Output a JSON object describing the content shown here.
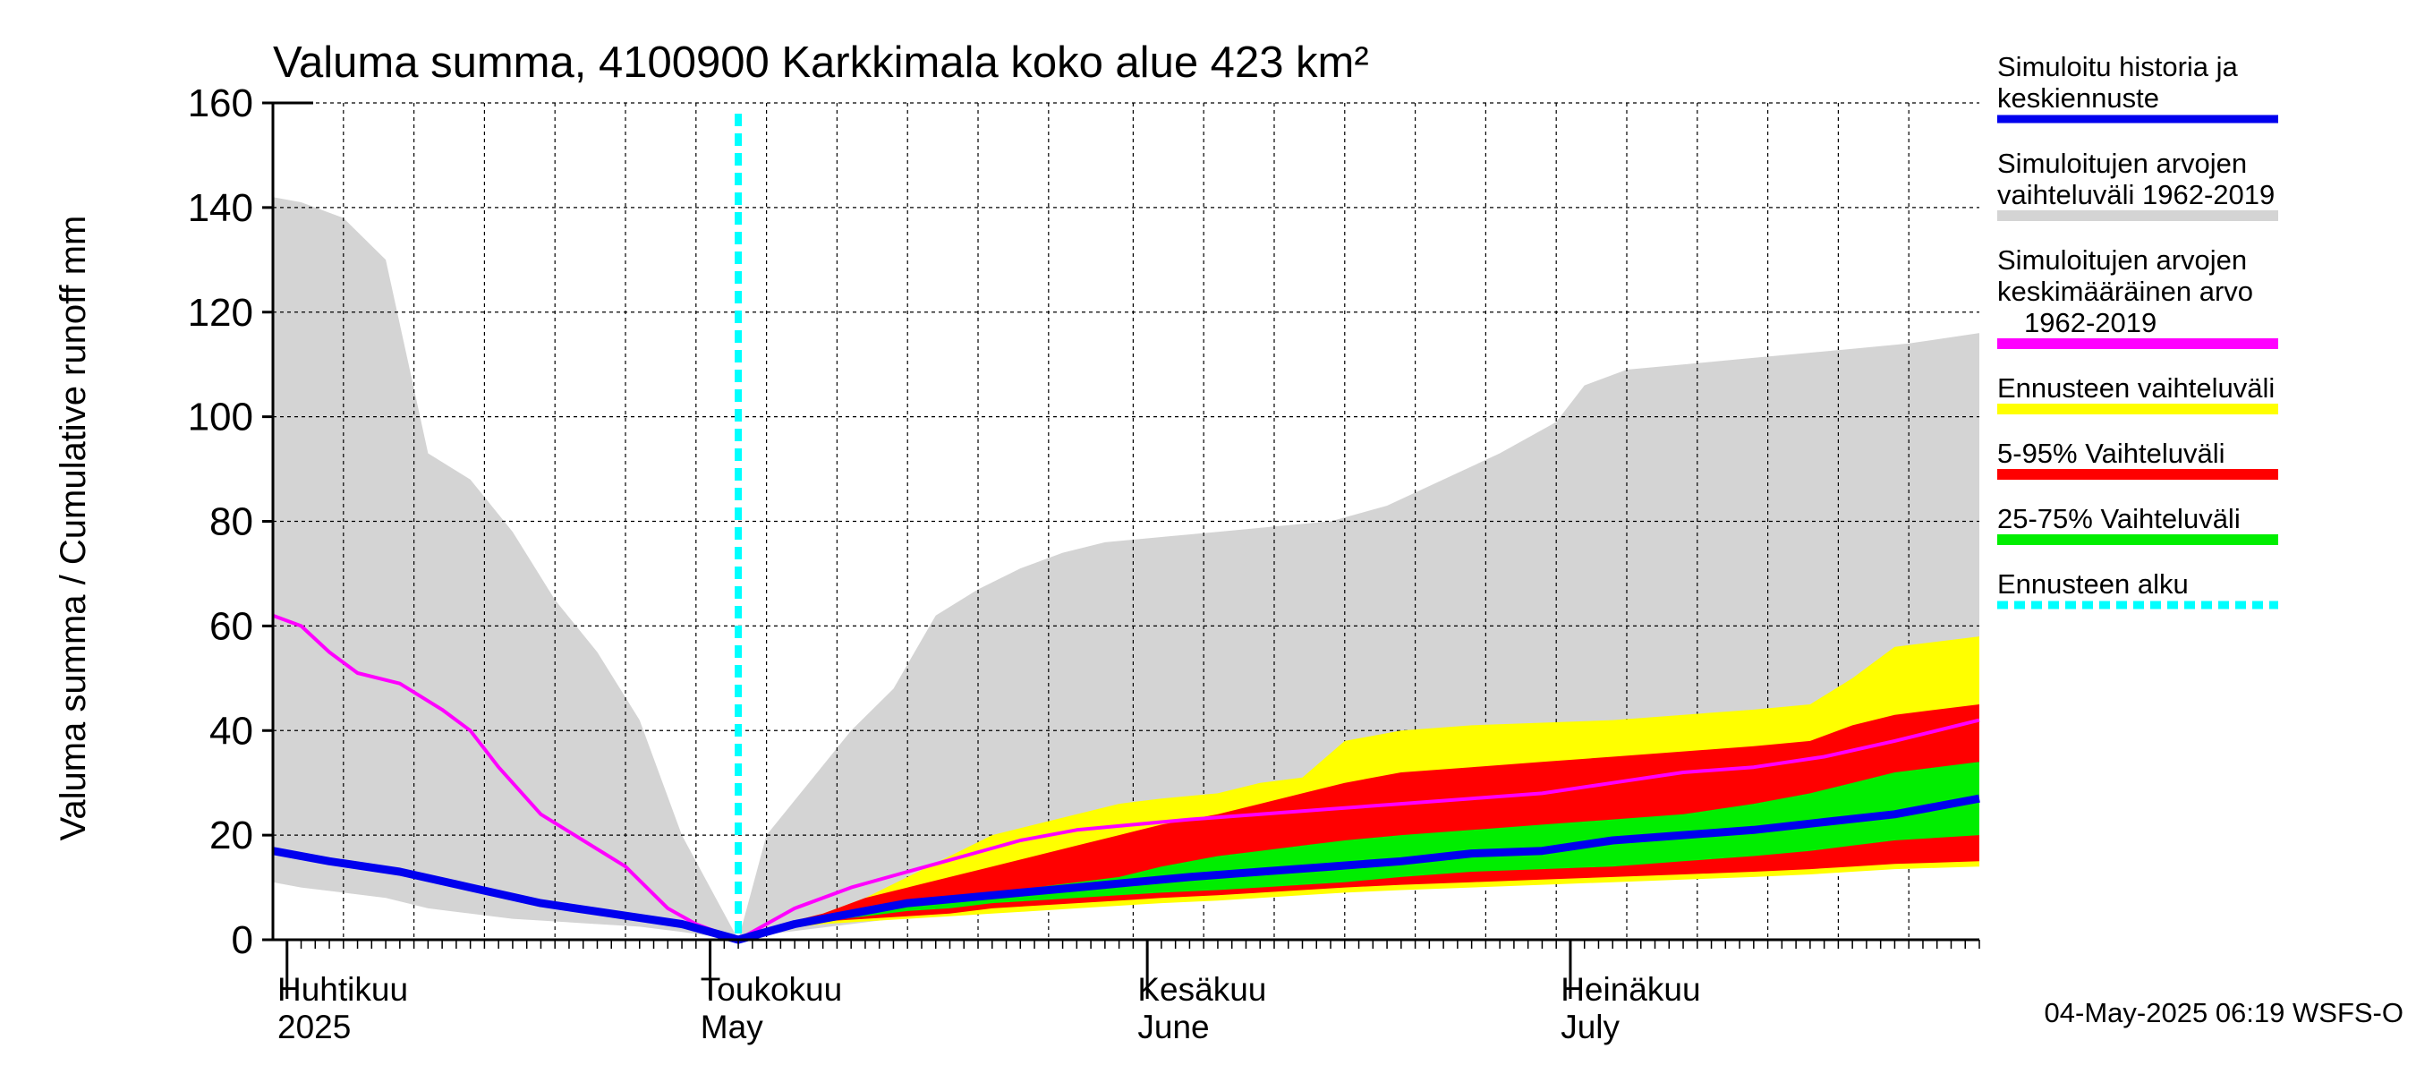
{
  "chart_data": {
    "type": "area",
    "title": "Valuma summa, 4100900 Karkkimala koko alue 423 km²",
    "ylabel": "Valuma summa / Cumulative runoff    mm",
    "ylim": [
      0,
      160
    ],
    "yticks": [
      0,
      20,
      40,
      60,
      80,
      100,
      120,
      140,
      160
    ],
    "x_unit": "day of year 2025",
    "xlim": [
      "2025-04-01",
      "2025-07-31"
    ],
    "grid": true,
    "legend_position": "right",
    "month_labels": [
      {
        "fi": "Huhtikuu",
        "en": "2025",
        "date": "2025-04-01"
      },
      {
        "fi": "Toukokuu",
        "en": "May",
        "date": "2025-05-01"
      },
      {
        "fi": "Kesäkuu",
        "en": "June",
        "date": "2025-06-01"
      },
      {
        "fi": "Heinäkuu",
        "en": "July",
        "date": "2025-07-01"
      }
    ],
    "forecast_start": "2025-05-04",
    "history_range": {
      "name": "Simuloitujen arvojen vaihteluväli 1962-2019",
      "color": "#d4d4d4",
      "x": [
        "2025-04-01",
        "2025-04-03",
        "2025-04-06",
        "2025-04-09",
        "2025-04-12",
        "2025-04-15",
        "2025-04-18",
        "2025-04-21",
        "2025-04-24",
        "2025-04-27",
        "2025-04-30",
        "2025-05-04",
        "2025-05-06",
        "2025-05-09",
        "2025-05-12",
        "2025-05-15",
        "2025-05-18",
        "2025-05-21",
        "2025-05-24",
        "2025-05-27",
        "2025-05-30",
        "2025-06-03",
        "2025-06-07",
        "2025-06-11",
        "2025-06-15",
        "2025-06-19",
        "2025-06-23",
        "2025-06-27",
        "2025-07-01",
        "2025-07-03",
        "2025-07-06",
        "2025-07-10",
        "2025-07-14",
        "2025-07-18",
        "2025-07-22",
        "2025-07-26",
        "2025-07-31"
      ],
      "upper": [
        142,
        141,
        138,
        130,
        93,
        88,
        78,
        65,
        55,
        42,
        20,
        0,
        20,
        30,
        40,
        48,
        62,
        67,
        71,
        74,
        76,
        77,
        78,
        79,
        80,
        83,
        88,
        93,
        99,
        106,
        109,
        110,
        111,
        112,
        113,
        114,
        116
      ],
      "lower": [
        11,
        10,
        9,
        8,
        6,
        5,
        4,
        3.5,
        3,
        2.5,
        1.5,
        0,
        1,
        2,
        3,
        4,
        5,
        5.5,
        6,
        6.5,
        7,
        7.5,
        8,
        8.5,
        9,
        9.5,
        10,
        10.5,
        11,
        11.5,
        12,
        12.5,
        13,
        13.5,
        14,
        14.5,
        15
      ]
    },
    "forecast_range": {
      "name": "Ennusteen vaihteluväli",
      "color": "#ffff00",
      "x": [
        "2025-05-04",
        "2025-05-07",
        "2025-05-10",
        "2025-05-13",
        "2025-05-16",
        "2025-05-19",
        "2025-05-22",
        "2025-05-25",
        "2025-05-28",
        "2025-05-31",
        "2025-06-03",
        "2025-06-07",
        "2025-06-10",
        "2025-06-13",
        "2025-06-16",
        "2025-06-20",
        "2025-06-25",
        "2025-06-30",
        "2025-07-05",
        "2025-07-10",
        "2025-07-15",
        "2025-07-19",
        "2025-07-22",
        "2025-07-25",
        "2025-07-31"
      ],
      "upper": [
        0,
        3,
        5,
        8,
        12,
        16,
        20,
        22,
        24,
        26,
        27,
        28,
        30,
        31,
        38,
        40,
        41,
        41.5,
        42,
        43,
        44,
        45,
        50,
        56,
        58
      ],
      "lower": [
        0,
        2,
        3,
        3.5,
        4,
        4.5,
        5,
        5.5,
        6,
        6.5,
        7,
        7.5,
        8,
        8.5,
        9,
        9.5,
        10,
        10.5,
        11,
        11.5,
        12,
        12.5,
        13,
        13.5,
        14
      ]
    },
    "range_5_95": {
      "name": "5-95% Vaihteluväli",
      "color": "#ff0000",
      "x": [
        "2025-05-04",
        "2025-05-07",
        "2025-05-10",
        "2025-05-13",
        "2025-05-16",
        "2025-05-19",
        "2025-05-22",
        "2025-05-25",
        "2025-05-28",
        "2025-05-31",
        "2025-06-03",
        "2025-06-07",
        "2025-06-10",
        "2025-06-13",
        "2025-06-16",
        "2025-06-20",
        "2025-06-25",
        "2025-06-30",
        "2025-07-05",
        "2025-07-10",
        "2025-07-15",
        "2025-07-19",
        "2025-07-22",
        "2025-07-25",
        "2025-07-31"
      ],
      "upper": [
        0,
        3,
        5,
        8,
        10,
        12,
        14,
        16,
        18,
        20,
        22,
        24,
        26,
        28,
        30,
        32,
        33,
        34,
        35,
        36,
        37,
        38,
        41,
        43,
        45
      ],
      "lower": [
        0,
        2.5,
        3.5,
        4,
        4.5,
        5,
        6,
        6.5,
        7,
        7.5,
        8,
        8.5,
        9,
        9.5,
        10,
        10.5,
        11,
        11.5,
        12,
        12.5,
        13,
        13.5,
        14,
        14.5,
        15
      ]
    },
    "range_25_75": {
      "name": "25-75% Vaihteluväli",
      "color": "#00ee00",
      "x": [
        "2025-05-04",
        "2025-05-07",
        "2025-05-10",
        "2025-05-13",
        "2025-05-16",
        "2025-05-19",
        "2025-05-22",
        "2025-05-25",
        "2025-05-28",
        "2025-05-31",
        "2025-06-03",
        "2025-06-07",
        "2025-06-10",
        "2025-06-13",
        "2025-06-16",
        "2025-06-20",
        "2025-06-25",
        "2025-06-30",
        "2025-07-05",
        "2025-07-10",
        "2025-07-15",
        "2025-07-19",
        "2025-07-22",
        "2025-07-25",
        "2025-07-31"
      ],
      "upper": [
        0,
        3,
        4.5,
        6,
        7,
        8,
        9,
        10,
        11,
        12,
        14,
        16,
        17,
        18,
        19,
        20,
        21,
        22,
        23,
        24,
        26,
        28,
        30,
        32,
        34
      ],
      "lower": [
        0,
        2.5,
        3.5,
        4.5,
        5.5,
        6,
        7,
        7.5,
        8,
        8.5,
        9,
        9.5,
        10,
        10.5,
        11,
        12,
        13,
        13.5,
        14,
        15,
        16,
        17,
        18,
        19,
        20
      ]
    },
    "series": [
      {
        "name": "Simuloitujen arvojen keskimääräinen arvo 1962-2019",
        "color": "#ff00ff",
        "x": [
          "2025-04-01",
          "2025-04-03",
          "2025-04-05",
          "2025-04-07",
          "2025-04-10",
          "2025-04-13",
          "2025-04-15",
          "2025-04-17",
          "2025-04-20",
          "2025-04-23",
          "2025-04-26",
          "2025-04-29",
          "2025-05-01",
          "2025-05-04",
          "2025-05-08",
          "2025-05-12",
          "2025-05-16",
          "2025-05-20",
          "2025-05-24",
          "2025-05-28",
          "2025-06-01",
          "2025-06-05",
          "2025-06-10",
          "2025-06-15",
          "2025-06-20",
          "2025-06-25",
          "2025-06-30",
          "2025-07-05",
          "2025-07-10",
          "2025-07-15",
          "2025-07-20",
          "2025-07-25",
          "2025-07-31"
        ],
        "y": [
          62,
          60,
          55,
          51,
          49,
          44,
          40,
          33,
          24,
          19,
          14,
          6,
          3,
          0,
          6,
          10,
          13,
          16,
          19,
          21,
          22,
          23,
          24,
          25,
          26,
          27,
          28,
          30,
          32,
          33,
          35,
          38,
          42
        ]
      },
      {
        "name": "Simuloitu historia ja keskiennuste",
        "color": "#0000ee",
        "x": [
          "2025-04-01",
          "2025-04-05",
          "2025-04-10",
          "2025-04-15",
          "2025-04-20",
          "2025-04-25",
          "2025-04-30",
          "2025-05-04",
          "2025-05-08",
          "2025-05-12",
          "2025-05-16",
          "2025-05-20",
          "2025-05-24",
          "2025-05-28",
          "2025-06-01",
          "2025-06-05",
          "2025-06-10",
          "2025-06-15",
          "2025-06-20",
          "2025-06-25",
          "2025-06-30",
          "2025-07-05",
          "2025-07-10",
          "2025-07-15",
          "2025-07-20",
          "2025-07-25",
          "2025-07-31"
        ],
        "y": [
          17,
          15,
          13,
          10,
          7,
          5,
          3,
          0,
          3,
          5,
          7,
          8,
          9,
          10,
          11,
          12,
          13,
          14,
          15,
          16.5,
          17,
          19,
          20,
          21,
          22.5,
          24,
          27
        ]
      }
    ],
    "legend": [
      {
        "label_lines": [
          "Simuloitu historia ja",
          "keskiennuste"
        ],
        "color": "#0000ee",
        "style": "solid"
      },
      {
        "label_lines": [
          "Simuloitujen arvojen",
          "vaihteluväli 1962-2019"
        ],
        "color": "#d4d4d4",
        "style": "solid"
      },
      {
        "label_lines": [
          "Simuloitujen arvojen",
          "keskimääräinen arvo",
          "1962-2019"
        ],
        "color": "#ff00ff",
        "style": "solid"
      },
      {
        "label_lines": [
          "Ennusteen vaihteluväli"
        ],
        "color": "#ffff00",
        "style": "solid"
      },
      {
        "label_lines": [
          "5-95% Vaihteluväli"
        ],
        "color": "#ff0000",
        "style": "solid"
      },
      {
        "label_lines": [
          "25-75% Vaihteluväli"
        ],
        "color": "#00ee00",
        "style": "solid"
      },
      {
        "label_lines": [
          "Ennusteen alku"
        ],
        "color": "#00ffff",
        "style": "dashed"
      }
    ],
    "footer": "04-May-2025 06:19 WSFS-O"
  }
}
